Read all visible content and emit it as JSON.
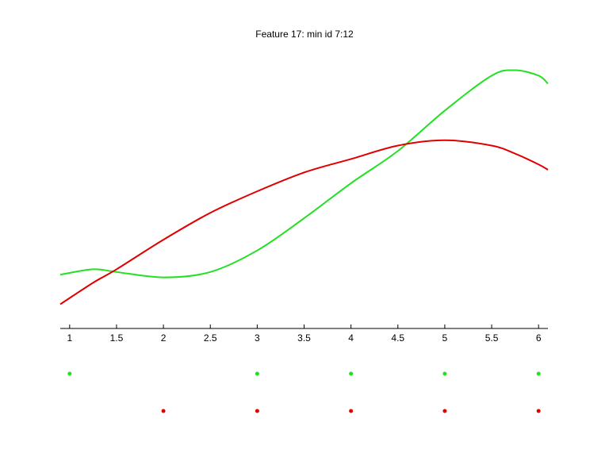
{
  "chart_data": {
    "type": "line",
    "title": "Feature 17: min id 7:12",
    "x": [
      0.9,
      1.25,
      1.5,
      2,
      2.5,
      3,
      3.5,
      4,
      4.5,
      5,
      5.5,
      5.75,
      6,
      6.1
    ],
    "series": [
      {
        "color": "#22e022",
        "values": [
          0.2,
          0.22,
          0.21,
          0.19,
          0.21,
          0.29,
          0.41,
          0.54,
          0.66,
          0.81,
          0.94,
          0.96,
          0.94,
          0.91
        ]
      },
      {
        "color": "#e00000",
        "values": [
          0.09,
          0.17,
          0.22,
          0.33,
          0.43,
          0.51,
          0.58,
          0.63,
          0.68,
          0.7,
          0.68,
          0.65,
          0.61,
          0.59
        ]
      }
    ],
    "dots": [
      {
        "color": "#22e022",
        "x": [
          1,
          3,
          4,
          5,
          6
        ]
      },
      {
        "color": "#e00000",
        "x": [
          2,
          3,
          4,
          5,
          6
        ]
      }
    ],
    "xlim": [
      0.9,
      6.1
    ],
    "ylim": [
      0,
      1
    ],
    "xticks": [
      1,
      1.5,
      2,
      2.5,
      3,
      3.5,
      4,
      4.5,
      5,
      5.5,
      6
    ]
  }
}
